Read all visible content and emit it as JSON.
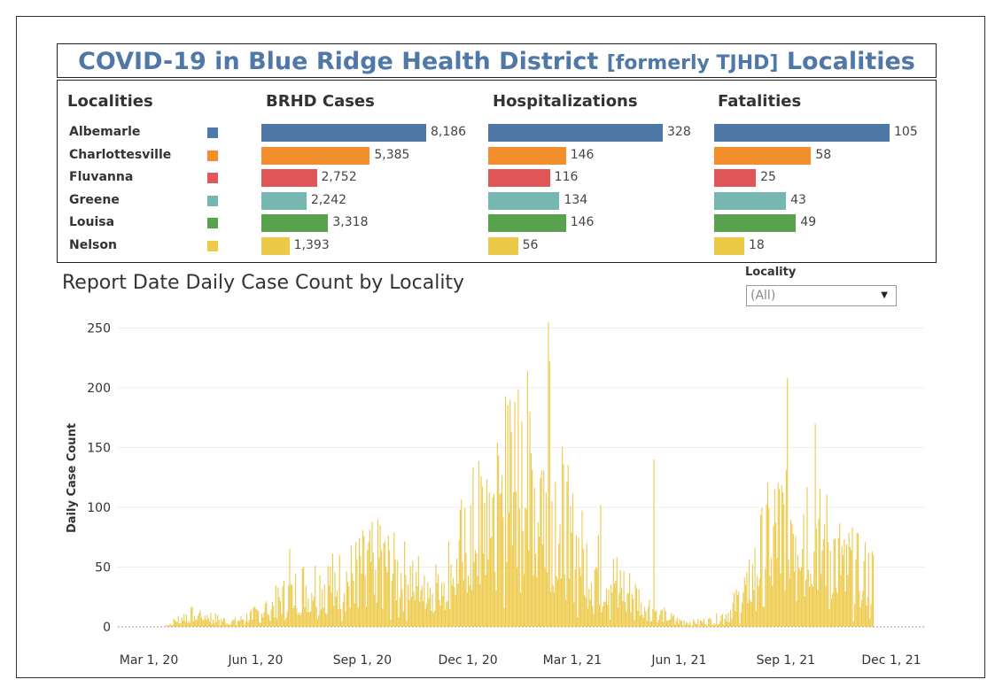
{
  "header": {
    "title_main": "COVID-19 in Blue Ridge Health District ",
    "title_sub": "[formerly TJHD]",
    "title_end": " Localities"
  },
  "table": {
    "columns": [
      "Localities",
      "BRHD Cases",
      "Hospitalizations",
      "Fatalities"
    ],
    "rows": [
      {
        "name": "Albemarle",
        "color": "#4e79a7",
        "cases": 8186,
        "cases_label": "8,186",
        "hosp": 328,
        "hosp_label": "328",
        "fatal": 105,
        "fatal_label": "105"
      },
      {
        "name": "Charlottesville",
        "color": "#f28e2b",
        "cases": 5385,
        "cases_label": "5,385",
        "hosp": 146,
        "hosp_label": "146",
        "fatal": 58,
        "fatal_label": "58"
      },
      {
        "name": "Fluvanna",
        "color": "#e15759",
        "cases": 2752,
        "cases_label": "2,752",
        "hosp": 116,
        "hosp_label": "116",
        "fatal": 25,
        "fatal_label": "25"
      },
      {
        "name": "Greene",
        "color": "#76b7b2",
        "cases": 2242,
        "cases_label": "2,242",
        "hosp": 134,
        "hosp_label": "134",
        "fatal": 43,
        "fatal_label": "43"
      },
      {
        "name": "Louisa",
        "color": "#59a14f",
        "cases": 3318,
        "cases_label": "3,318",
        "hosp": 146,
        "hosp_label": "146",
        "fatal": 49,
        "fatal_label": "49"
      },
      {
        "name": "Nelson",
        "color": "#edc948",
        "cases": 1393,
        "cases_label": "1,393",
        "hosp": 56,
        "hosp_label": "56",
        "fatal": 18,
        "fatal_label": "18"
      }
    ]
  },
  "filter": {
    "label": "Locality",
    "value": "(All)"
  },
  "chart_data": {
    "type": "bar",
    "title": "Report Date Daily Case Count by Locality",
    "xlabel": "",
    "ylabel": "Daily Case Count",
    "ylim": [
      0,
      260
    ],
    "yticks": [
      0,
      50,
      100,
      150,
      200,
      250
    ],
    "xticks": [
      "Mar 1, 20",
      "Jun 1, 20",
      "Sep 1, 20",
      "Dec 1, 20",
      "Mar 1, 21",
      "Jun 1, 21",
      "Sep 1, 21",
      "Dec 1, 21"
    ],
    "bar_color": "#edc948",
    "grid": true,
    "points": [
      [
        "Mar 1, 20",
        0
      ],
      [
        "Mar 15, 20",
        1
      ],
      [
        "Apr 1, 20",
        10
      ],
      [
        "Apr 15, 20",
        12
      ],
      [
        "May 1, 20",
        6
      ],
      [
        "May 15, 20",
        5
      ],
      [
        "Jun 1, 20",
        12
      ],
      [
        "Jun 15, 20",
        20
      ],
      [
        "Jul 1, 20",
        30
      ],
      [
        "Jul 15, 20",
        38
      ],
      [
        "Aug 1, 20",
        40
      ],
      [
        "Aug 15, 20",
        42
      ],
      [
        "Sep 1, 20",
        52
      ],
      [
        "Sep 15, 20",
        58
      ],
      [
        "Oct 1, 20",
        48
      ],
      [
        "Oct 15, 20",
        44
      ],
      [
        "Nov 1, 20",
        40
      ],
      [
        "Nov 15, 20",
        52
      ],
      [
        "Dec 1, 20",
        80
      ],
      [
        "Dec 15, 20",
        100
      ],
      [
        "Jan 1, 21",
        120
      ],
      [
        "Jan 15, 21",
        140
      ],
      [
        "Feb 1, 21",
        130
      ],
      [
        "Feb 15, 21",
        110
      ],
      [
        "Mar 1, 21",
        75
      ],
      [
        "Mar 15, 21",
        55
      ],
      [
        "Apr 1, 21",
        45
      ],
      [
        "Apr 15, 21",
        35
      ],
      [
        "May 1, 21",
        22
      ],
      [
        "May 15, 21",
        12
      ],
      [
        "Jun 1, 21",
        5
      ],
      [
        "Jun 15, 21",
        4
      ],
      [
        "Jul 1, 21",
        6
      ],
      [
        "Jul 15, 21",
        14
      ],
      [
        "Aug 1, 21",
        40
      ],
      [
        "Aug 15, 21",
        75
      ],
      [
        "Sep 1, 21",
        100
      ],
      [
        "Sep 15, 21",
        105
      ],
      [
        "Oct 1, 21",
        82
      ],
      [
        "Oct 15, 21",
        62
      ],
      [
        "Nov 1, 21",
        50
      ],
      [
        "Nov 15, 21",
        45
      ]
    ],
    "spikes": [
      [
        "Feb 8, 21",
        255
      ],
      [
        "Feb 9, 21",
        222
      ],
      [
        "Jan 2, 21",
        193
      ],
      [
        "Jan 4, 21",
        186
      ],
      [
        "Sep 2, 21",
        208
      ],
      [
        "Sep 26, 21",
        170
      ],
      [
        "May 10, 21",
        140
      ],
      [
        "Jan 23, 21",
        180
      ],
      [
        "Jan 16, 21",
        172
      ],
      [
        "Jun 30, 20",
        65
      ],
      [
        "Sep 16, 20",
        85
      ],
      [
        "Mar 25, 21",
        102
      ]
    ]
  }
}
